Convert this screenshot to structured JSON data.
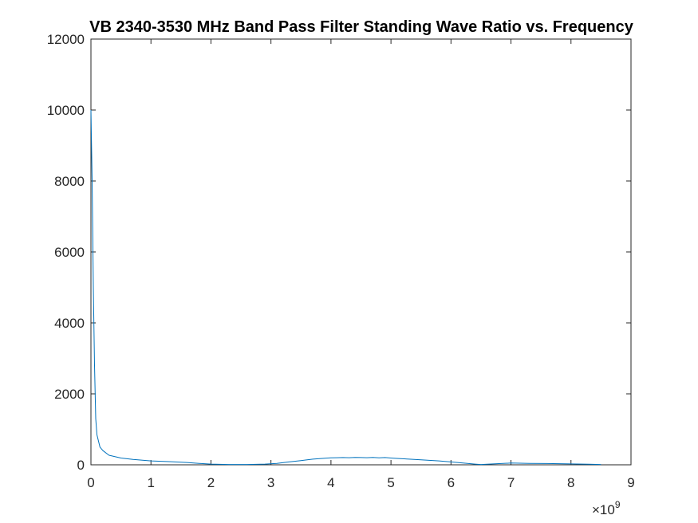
{
  "chart_data": {
    "type": "line",
    "title": "VB 2340-3530 MHz Band Pass Filter Standing Wave Ratio vs. Frequency",
    "xlabel": "",
    "ylabel": "",
    "xlim": [
      0,
      9
    ],
    "ylim": [
      0,
      12000
    ],
    "x_multiplier_prefix": "×10",
    "x_multiplier_exponent": "9",
    "x_ticks": [
      "0",
      "1",
      "2",
      "3",
      "4",
      "5",
      "6",
      "7",
      "8",
      "9"
    ],
    "y_ticks": [
      "0",
      "2000",
      "4000",
      "6000",
      "8000",
      "10000",
      "12000"
    ],
    "grid": false,
    "legend": "none",
    "series": [
      {
        "color": "#0072BD",
        "x": [
          0.0,
          0.02,
          0.04,
          0.06,
          0.08,
          0.1,
          0.15,
          0.2,
          0.3,
          0.5,
          0.7,
          1.0,
          1.3,
          1.6,
          1.8,
          2.0,
          2.3,
          2.6,
          2.9,
          3.1,
          3.3,
          3.5,
          3.7,
          3.9,
          4.0,
          4.1,
          4.2,
          4.3,
          4.4,
          4.5,
          4.6,
          4.7,
          4.8,
          4.9,
          5.0,
          5.1,
          5.3,
          5.5,
          5.8,
          6.0,
          6.2,
          6.4,
          6.5,
          6.7,
          7.0,
          7.3,
          7.6,
          8.0,
          8.3,
          8.5
        ],
        "y": [
          10000,
          8000,
          5000,
          2800,
          1300,
          850,
          500,
          400,
          270,
          190,
          150,
          110,
          90,
          65,
          40,
          20,
          10,
          8,
          20,
          40,
          80,
          120,
          160,
          185,
          195,
          200,
          205,
          200,
          210,
          205,
          200,
          210,
          195,
          205,
          190,
          180,
          160,
          140,
          110,
          80,
          50,
          20,
          10,
          25,
          50,
          40,
          35,
          25,
          15,
          10
        ]
      }
    ]
  }
}
